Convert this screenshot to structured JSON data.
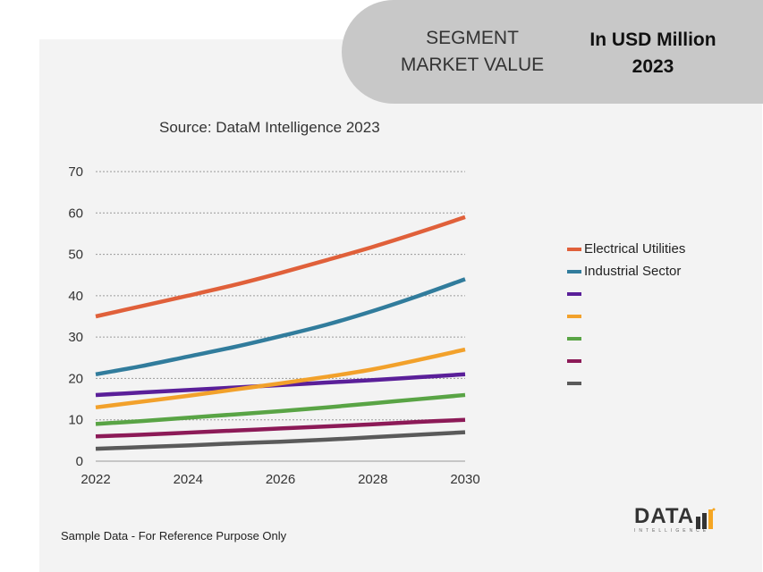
{
  "header": {
    "segment_line1": "SEGMENT",
    "segment_line2": "MARKET VALUE",
    "usd_line1": "In USD Million",
    "usd_line2": "2023"
  },
  "footer": {
    "note": "Sample Data - For Reference Purpose Only"
  },
  "logo": {
    "main": "DATA",
    "sub": "INTELLIGENCE"
  },
  "colors": {
    "orange_accent": "#f5a623",
    "logo_gray": "#333333"
  },
  "chart_data": {
    "type": "line",
    "title": "Source: DataM Intelligence 2023",
    "x": [
      2022,
      2023,
      2024,
      2025,
      2026,
      2027,
      2028,
      2029,
      2030
    ],
    "x_ticks": [
      2022,
      2024,
      2026,
      2028,
      2030
    ],
    "y_ticks": [
      0,
      10,
      20,
      30,
      40,
      50,
      60,
      70
    ],
    "ylim": [
      0,
      70
    ],
    "xlim": [
      2022,
      2030
    ],
    "grid": true,
    "legend_position": "right",
    "series": [
      {
        "name": "Electrical Utilities",
        "color": "#e0603a",
        "values": [
          35,
          37.5,
          40,
          42.6,
          45.5,
          48.6,
          51.8,
          55.3,
          59
        ]
      },
      {
        "name": "Industrial Sector",
        "color": "#317c9c",
        "values": [
          21,
          23,
          25.3,
          27.6,
          30.2,
          33,
          36.3,
          40,
          44
        ]
      },
      {
        "name": "",
        "color": "#5a1f99",
        "values": [
          16,
          16.6,
          17.2,
          17.8,
          18.4,
          19,
          19.6,
          20.3,
          21
        ]
      },
      {
        "name": "",
        "color": "#f2a12b",
        "values": [
          13,
          14.4,
          15.8,
          17.3,
          18.8,
          20.4,
          22.2,
          24.5,
          27
        ]
      },
      {
        "name": "",
        "color": "#59a445",
        "values": [
          9,
          9.7,
          10.5,
          11.3,
          12.1,
          13,
          14,
          15,
          16
        ]
      },
      {
        "name": "",
        "color": "#8c1a57",
        "values": [
          6,
          6.4,
          6.9,
          7.4,
          7.9,
          8.4,
          8.9,
          9.5,
          10
        ]
      },
      {
        "name": "",
        "color": "#5a5a5a",
        "values": [
          3,
          3.4,
          3.8,
          4.3,
          4.7,
          5.2,
          5.8,
          6.4,
          7
        ]
      }
    ]
  }
}
